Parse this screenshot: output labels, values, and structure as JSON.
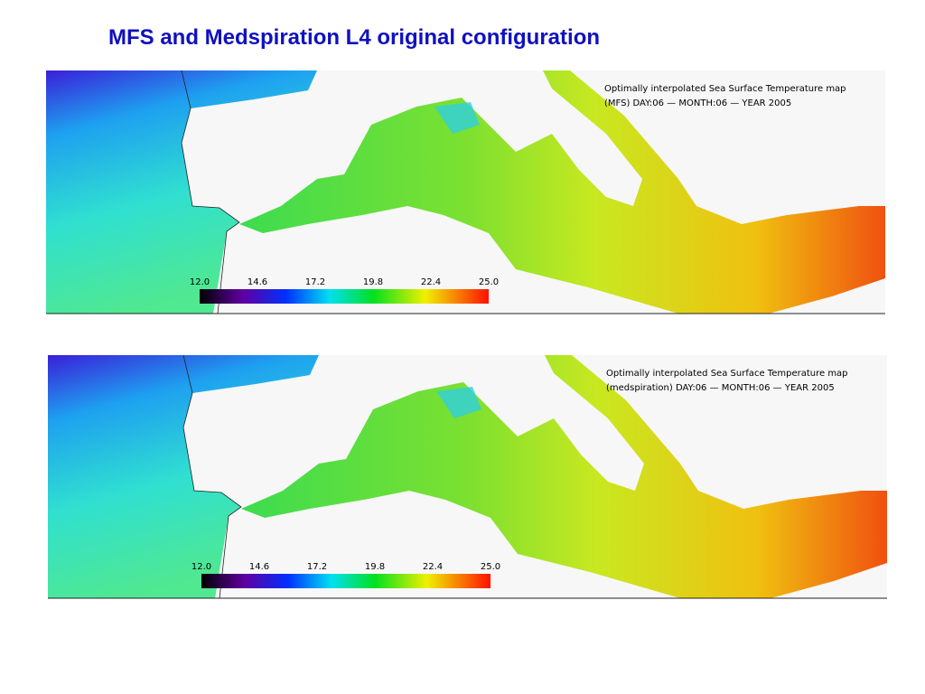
{
  "header": {
    "title": "MFS and Medspiration L4 original configuration"
  },
  "maps": [
    {
      "caption": [
        "Optimally interpolated Sea Surface Temperature map",
        "(MFS) DAY:06 — MONTH:06 — YEAR 2005"
      ],
      "colorbar_labels": [
        "12.0",
        "14.6",
        "17.2",
        "19.8",
        "22.4",
        "25.0"
      ]
    },
    {
      "caption": [
        "Optimally interpolated Sea Surface Temperature map",
        "(medspiration) DAY:06 — MONTH:06 — YEAR 2005"
      ],
      "colorbar_labels": [
        "12.0",
        "14.6",
        "17.2",
        "19.8",
        "22.4",
        "25.0"
      ]
    }
  ]
}
